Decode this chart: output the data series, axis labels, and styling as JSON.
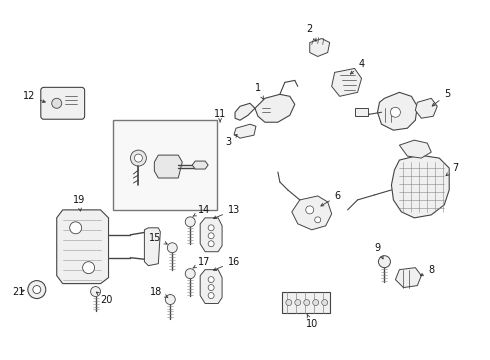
{
  "background_color": "#ffffff",
  "figure_width": 4.9,
  "figure_height": 3.6,
  "dpi": 100,
  "line_color": "#444444",
  "label_fontsize": 7.0,
  "label_color": "#111111",
  "arrow_color": "#333333"
}
